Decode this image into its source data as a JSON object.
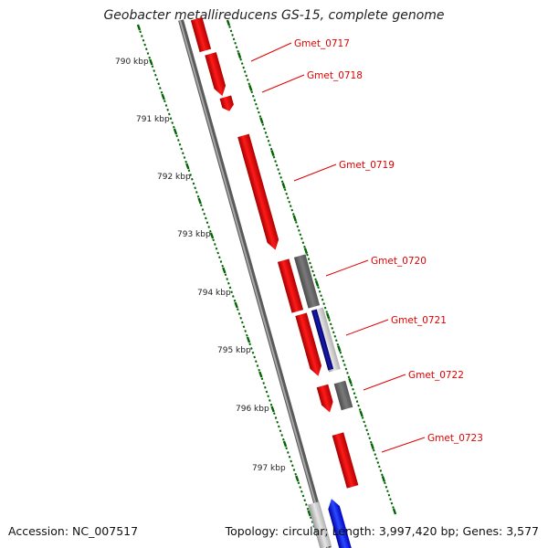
{
  "title": "Geobacter metallireducens GS-15, complete genome",
  "accession": "Accession: NC_007517",
  "summary": "Topology: circular; Length: 3,997,420 bp; Genes: 3,577",
  "ticks": [
    {
      "label": "790 kbp"
    },
    {
      "label": "791 kbp"
    },
    {
      "label": "792 kbp"
    },
    {
      "label": "793 kbp"
    },
    {
      "label": "794 kbp"
    },
    {
      "label": "795 kbp"
    },
    {
      "label": "796 kbp"
    },
    {
      "label": "797 kbp"
    }
  ],
  "genes": [
    {
      "label": "Gmet_0717"
    },
    {
      "label": "Gmet_0718"
    },
    {
      "label": "Gmet_0719"
    },
    {
      "label": "Gmet_0720"
    },
    {
      "label": "Gmet_0721"
    },
    {
      "label": "Gmet_0722"
    },
    {
      "label": "Gmet_0723"
    }
  ],
  "colors": {
    "cds": "#ff0000",
    "gene": "#808080",
    "trna": "#00008b",
    "other": "#0000ff",
    "backbone": "#808080",
    "tick": "#006400",
    "label": "#e00000"
  }
}
